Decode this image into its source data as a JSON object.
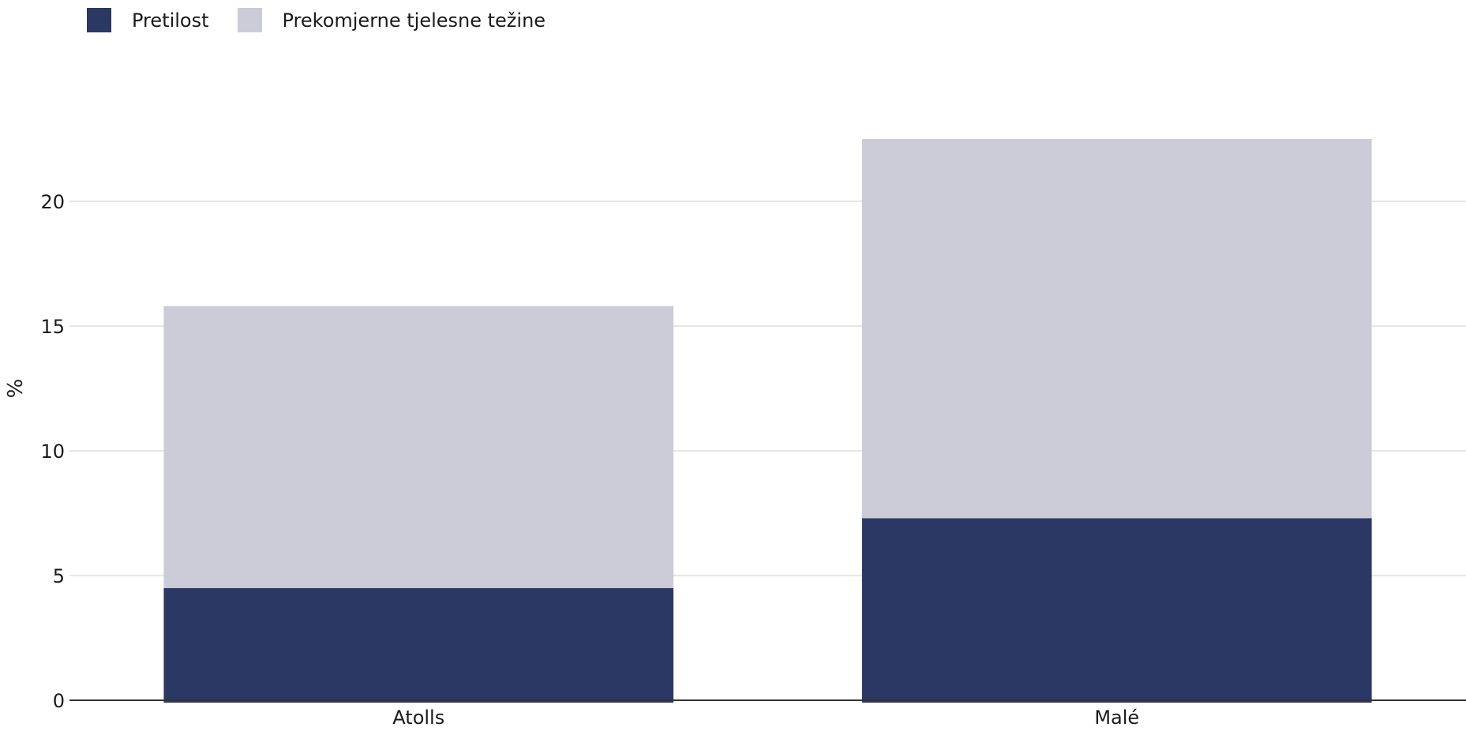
{
  "chart_data": {
    "type": "bar",
    "stacked": true,
    "categories": [
      "Atolls",
      "Malé"
    ],
    "series": [
      {
        "name": "Pretilost",
        "values": [
          4.5,
          7.3
        ],
        "color": "#2b3864"
      },
      {
        "name": "Prekomjerne tjelesne težine",
        "values": [
          11.3,
          15.2
        ],
        "color": "#cbccd8"
      }
    ],
    "title": "",
    "xlabel": "",
    "ylabel": "%",
    "ylim": [
      0,
      25
    ],
    "yticks": [
      0,
      5,
      10,
      15,
      20
    ],
    "ytick_labels": [
      "0",
      "5",
      "10",
      "15",
      "20"
    ],
    "grid": true,
    "legend_position": "top-left"
  }
}
